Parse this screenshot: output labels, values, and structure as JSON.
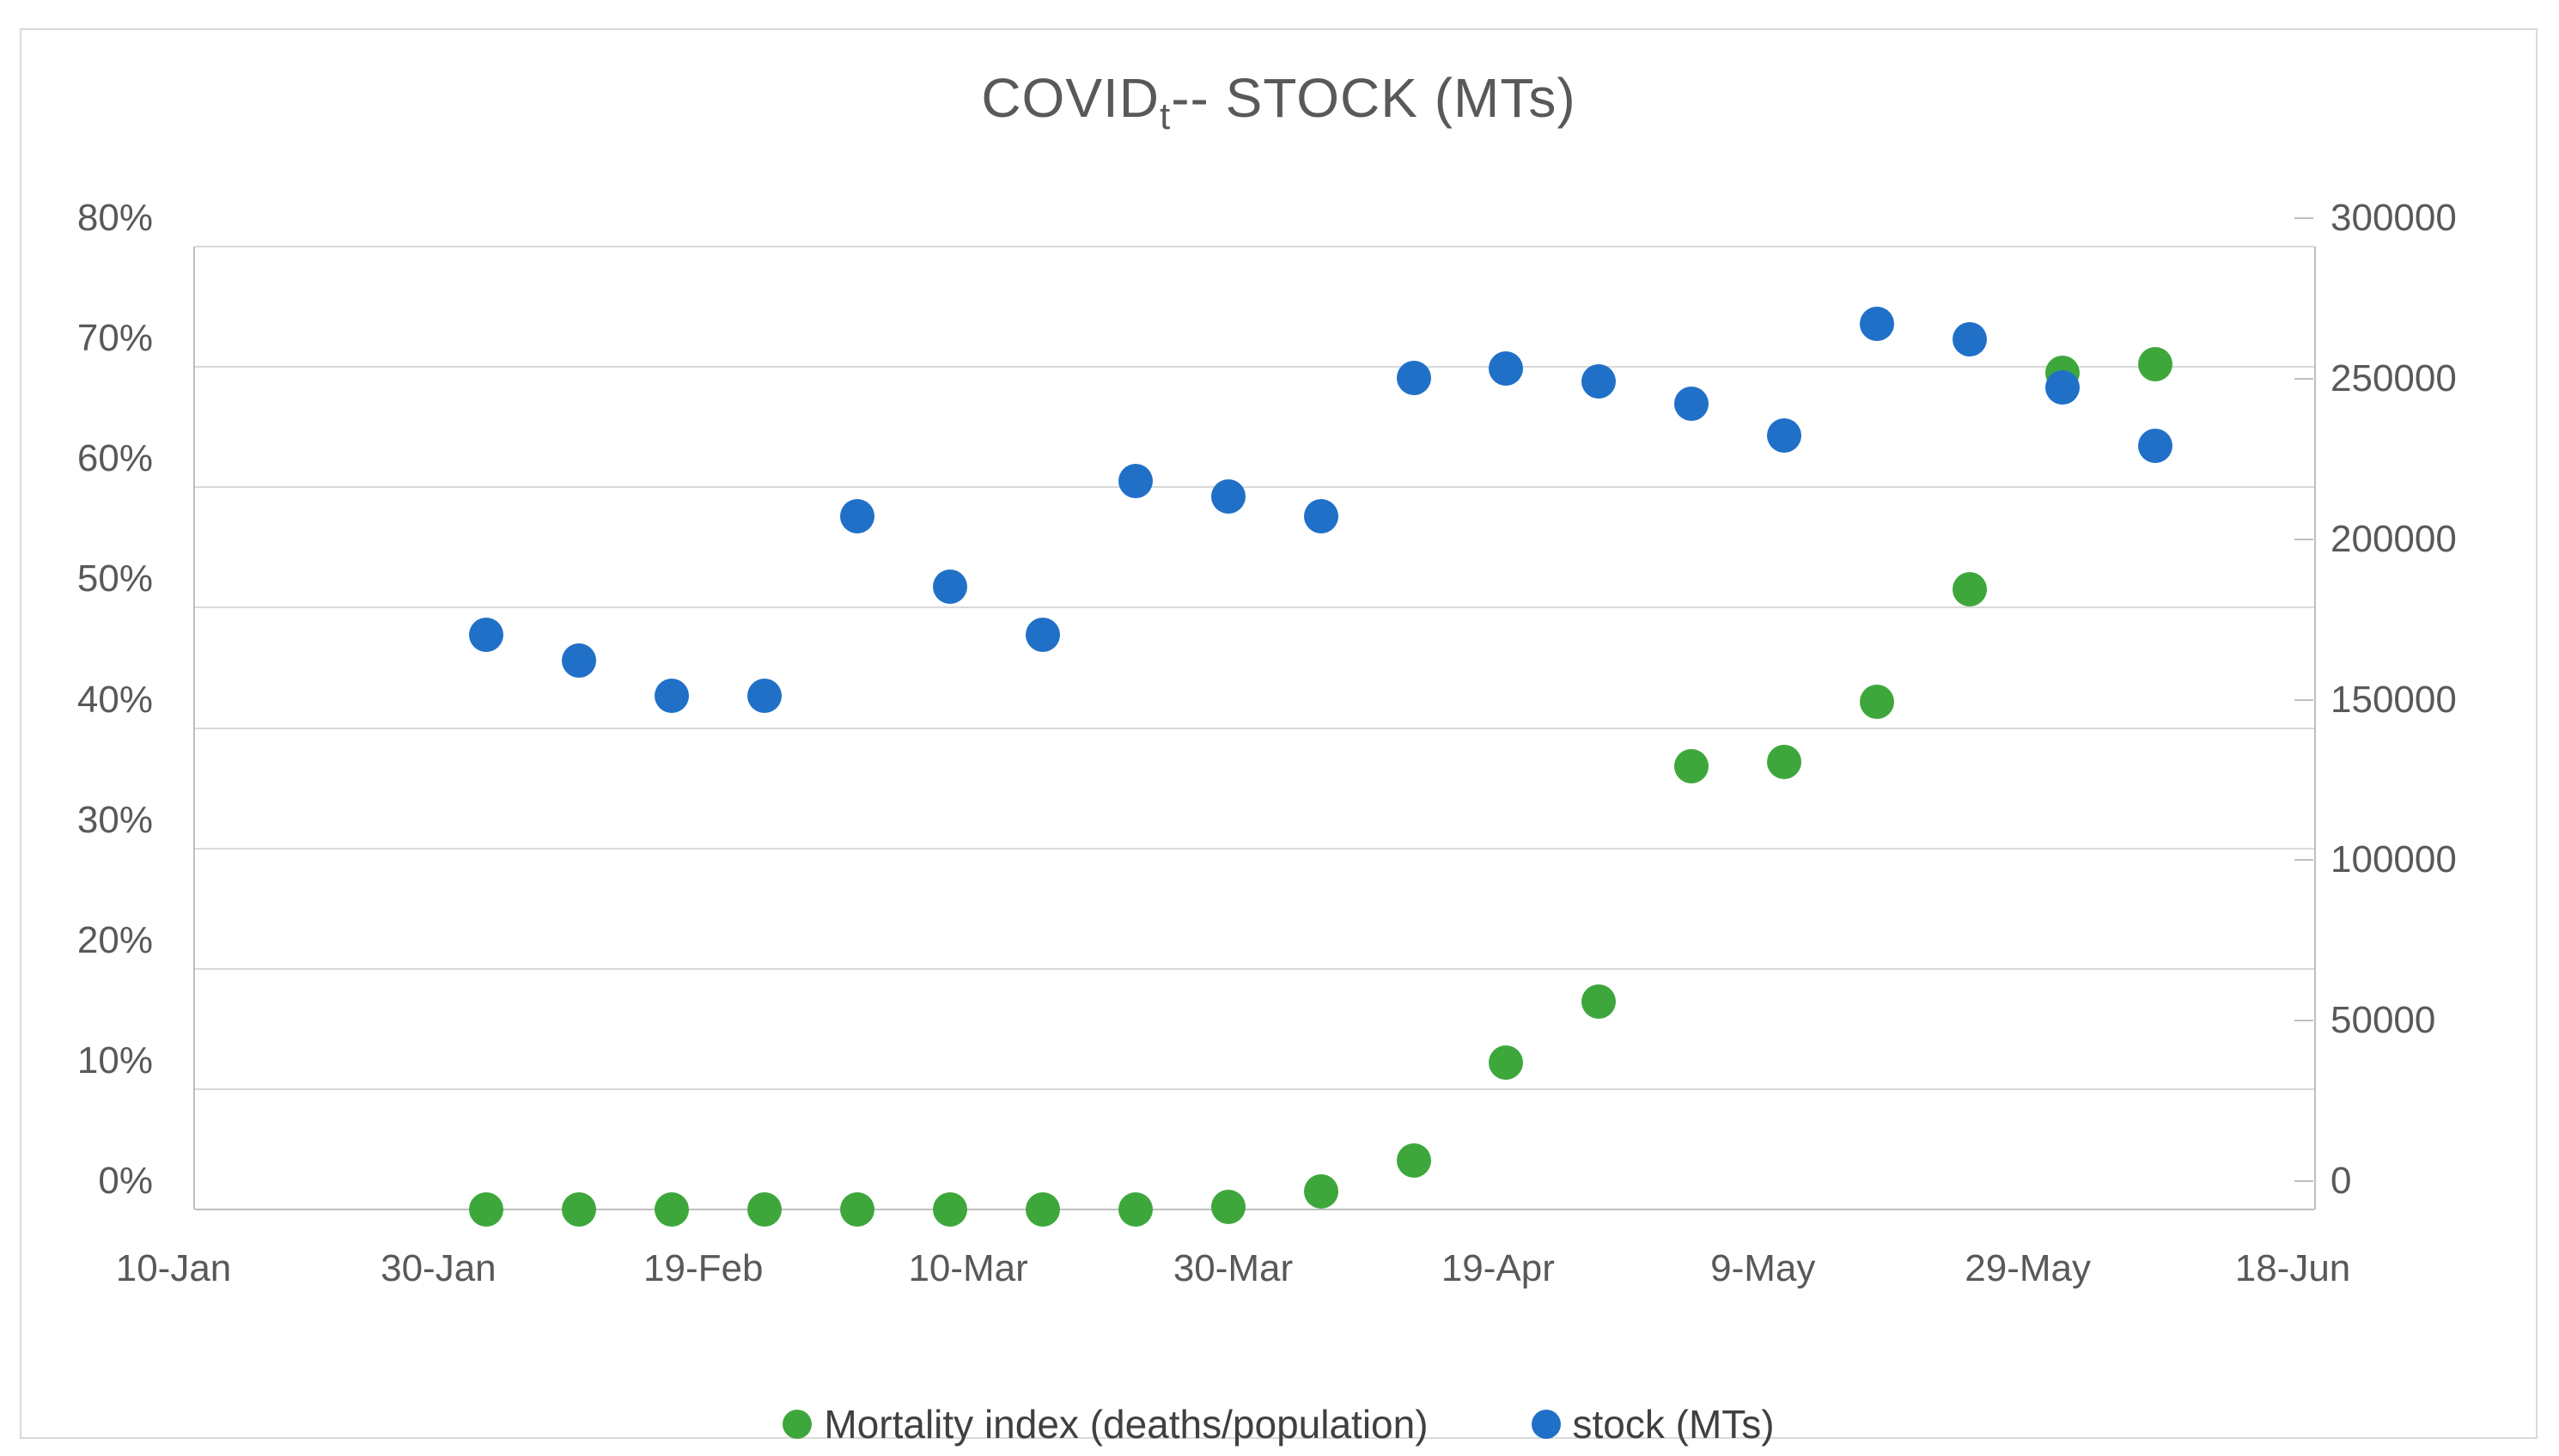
{
  "title": {
    "prefix": "COVID",
    "subscript": "t",
    "suffix": "-- STOCK (MTs)"
  },
  "colors": {
    "mortality_green": "#3ea73c",
    "stock_blue": "#2070c8",
    "gridline": "#d9d9d9",
    "axis_line": "#bfbfbf",
    "text": "#595959"
  },
  "chart_data": {
    "type": "scatter",
    "title": "COVID_t -- STOCK (MTs)",
    "grid": "horizontal-only",
    "legend_position": "bottom-center",
    "x_axis": {
      "kind": "date",
      "start": "10-Jan",
      "end": "18-Jun",
      "interval_days": 20,
      "tick_labels": [
        "10-Jan",
        "30-Jan",
        "19-Feb",
        "10-Mar",
        "30-Mar",
        "19-Apr",
        "9-May",
        "29-May",
        "18-Jun"
      ]
    },
    "y_axis_left": {
      "format": "percent",
      "min": 0,
      "max": 80,
      "step": 10,
      "tick_labels": [
        "0%",
        "10%",
        "20%",
        "30%",
        "40%",
        "50%",
        "60%",
        "70%",
        "80%"
      ]
    },
    "y_axis_right": {
      "format": "number",
      "min": 0,
      "max": 300000,
      "step": 50000,
      "tick_labels": [
        "0",
        "50000",
        "100000",
        "150000",
        "200000",
        "250000",
        "300000"
      ]
    },
    "dates": [
      "1-Feb",
      "8-Feb",
      "15-Feb",
      "22-Feb",
      "29-Feb",
      "7-Mar",
      "14-Mar",
      "21-Mar",
      "28-Mar",
      "4-Apr",
      "11-Apr",
      "18-Apr",
      "25-Apr",
      "2-May",
      "9-May",
      "16-May",
      "23-May",
      "30-May",
      "6-Jun"
    ],
    "series": [
      {
        "name": "Mortality index (deaths/population)",
        "axis": "left",
        "marker": "circle",
        "color": "#3ea73c",
        "values_pct": [
          0,
          0,
          0,
          0,
          0,
          0,
          0,
          0,
          0.2,
          1.5,
          4.1,
          12.2,
          17.3,
          36.8,
          37.2,
          42.2,
          51.5,
          69.5,
          70.2
        ]
      },
      {
        "name": "stock (MTs)",
        "axis": "right",
        "marker": "circle",
        "color": "#2070c8",
        "values": [
          179000,
          171000,
          160000,
          160000,
          216000,
          194000,
          179000,
          227000,
          222000,
          216000,
          259000,
          262000,
          258000,
          251000,
          241000,
          276000,
          271000,
          256000,
          238000
        ]
      }
    ]
  },
  "legend": {
    "items": [
      {
        "label": "Mortality index (deaths/population)",
        "color": "#3ea73c"
      },
      {
        "label": "stock (MTs)",
        "color": "#2070c8"
      }
    ]
  }
}
